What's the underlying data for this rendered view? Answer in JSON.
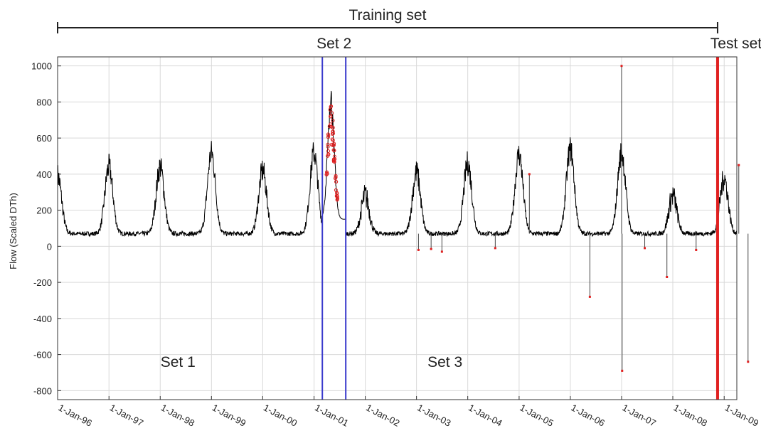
{
  "chart_data": {
    "type": "line",
    "ylabel": "Flow (Scaled DTh)",
    "ylim": [
      -850,
      1050
    ],
    "yticks": [
      1000,
      800,
      600,
      400,
      200,
      0,
      -200,
      -400,
      -600,
      -800
    ],
    "x_start": "1-Jan-96",
    "x_end": "1-Apr-09",
    "xticks": [
      "1-Jan-96",
      "1-Jan-97",
      "1-Jan-98",
      "1-Jan-99",
      "1-Jan-00",
      "1-Jan-01",
      "1-Jan-02",
      "1-Jan-03",
      "1-Jan-04",
      "1-Jan-05",
      "1-Jan-06",
      "1-Jan-07",
      "1-Jan-08",
      "1-Jan-09"
    ],
    "grid": true,
    "colors": {
      "series": "#000000",
      "outliers": "#e02020",
      "set2_bounds": "#3a3acc",
      "test_bound": "#e02020"
    },
    "winter_peaks": [
      {
        "date": "1-Jan-96",
        "value": 390
      },
      {
        "date": "1-Jan-97",
        "value": 440
      },
      {
        "date": "1-Jan-98",
        "value": 440
      },
      {
        "date": "1-Jan-99",
        "value": 520
      },
      {
        "date": "1-Jan-00",
        "value": 420
      },
      {
        "date": "1-Jan-01",
        "value": 520
      },
      {
        "date": "1-Jan-02",
        "value": 280
      },
      {
        "date": "1-Jan-03",
        "value": 410
      },
      {
        "date": "1-Jan-04",
        "value": 460
      },
      {
        "date": "1-Jan-05",
        "value": 510
      },
      {
        "date": "1-Jan-06",
        "value": 540
      },
      {
        "date": "1-Jan-07",
        "value": 520
      },
      {
        "date": "1-Jan-08",
        "value": 280
      },
      {
        "date": "1-Jan-09",
        "value": 380
      }
    ],
    "summer_base": 70,
    "set2_peak": {
      "date": "1-May-01",
      "value": 800
    },
    "outliers": [
      {
        "date": "15-Jan-03",
        "value": -20
      },
      {
        "date": "15-Apr-03",
        "value": -15
      },
      {
        "date": "1-Jul-03",
        "value": -30
      },
      {
        "date": "15-Jul-04",
        "value": -10
      },
      {
        "date": "15-Mar-05",
        "value": 400
      },
      {
        "date": "20-May-06",
        "value": -280
      },
      {
        "date": "1-Jan-07",
        "value": 1000
      },
      {
        "date": "5-Jan-07",
        "value": -690
      },
      {
        "date": "15-Jun-07",
        "value": -10
      },
      {
        "date": "20-Nov-07",
        "value": -170
      },
      {
        "date": "15-Jun-08",
        "value": -20
      },
      {
        "date": "15-Apr-09",
        "value": 450
      },
      {
        "date": "20-Jun-09",
        "value": -640
      }
    ],
    "set2_range": [
      "1-Mar-01",
      "15-Aug-01"
    ],
    "test_start": "15-Nov-08",
    "annotations": {
      "training": "Training set",
      "set1": "Set 1",
      "set2": "Set 2",
      "set3": "Set 3",
      "test": "Test set"
    }
  }
}
